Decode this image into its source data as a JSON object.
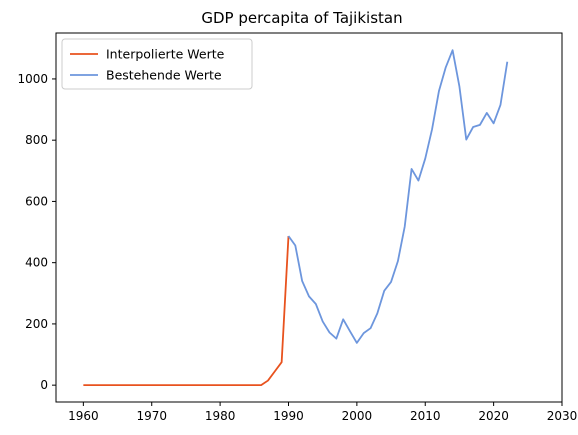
{
  "chart_data": {
    "type": "line",
    "title": "GDP percapita of Tajikistan",
    "xlabel": "",
    "ylabel": "",
    "xlim": [
      1956,
      2030
    ],
    "ylim": [
      -55,
      1150
    ],
    "xticks": [
      1960,
      1970,
      1980,
      1990,
      2000,
      2010,
      2020,
      2030
    ],
    "yticks": [
      0,
      200,
      400,
      600,
      800,
      1000
    ],
    "grid": false,
    "legend_position": "top-left",
    "series": [
      {
        "name": "Interpolierte Werte",
        "color": "#e8521e",
        "x": [
          1960,
          1961,
          1962,
          1963,
          1964,
          1965,
          1966,
          1967,
          1968,
          1969,
          1970,
          1971,
          1972,
          1973,
          1974,
          1975,
          1976,
          1977,
          1978,
          1979,
          1980,
          1981,
          1982,
          1983,
          1984,
          1985,
          1986,
          1987,
          1988,
          1989,
          1990
        ],
        "y": [
          0,
          0,
          0,
          0,
          0,
          0,
          0,
          0,
          0,
          0,
          0,
          0,
          0,
          0,
          0,
          0,
          0,
          0,
          0,
          0,
          0,
          0,
          0,
          0,
          0,
          0,
          0,
          15,
          45,
          75,
          487
        ]
      },
      {
        "name": "Bestehende Werte",
        "color": "#6d96dd",
        "x": [
          1990,
          1991,
          1992,
          1993,
          1994,
          1995,
          1996,
          1997,
          1998,
          1999,
          2000,
          2001,
          2002,
          2003,
          2004,
          2005,
          2006,
          2007,
          2008,
          2009,
          2010,
          2011,
          2012,
          2013,
          2014,
          2015,
          2016,
          2017,
          2018,
          2019,
          2020,
          2021,
          2022
        ],
        "y": [
          487,
          456,
          340,
          290,
          265,
          208,
          172,
          152,
          215,
          176,
          138,
          170,
          186,
          235,
          308,
          337,
          405,
          518,
          706,
          668,
          740,
          836,
          960,
          1038,
          1094,
          975,
          802,
          843,
          850,
          889,
          855,
          915,
          1056
        ]
      }
    ]
  }
}
